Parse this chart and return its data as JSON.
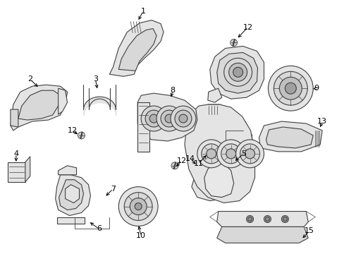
{
  "bg_color": "#ffffff",
  "line_color": "#404040",
  "label_color": "#000000",
  "figsize": [
    4.89,
    3.6
  ],
  "dpi": 100,
  "lw": 0.8,
  "fill_color": "#f0f0f0",
  "fill_dark": "#d8d8d8",
  "fill_med": "#e4e4e4"
}
